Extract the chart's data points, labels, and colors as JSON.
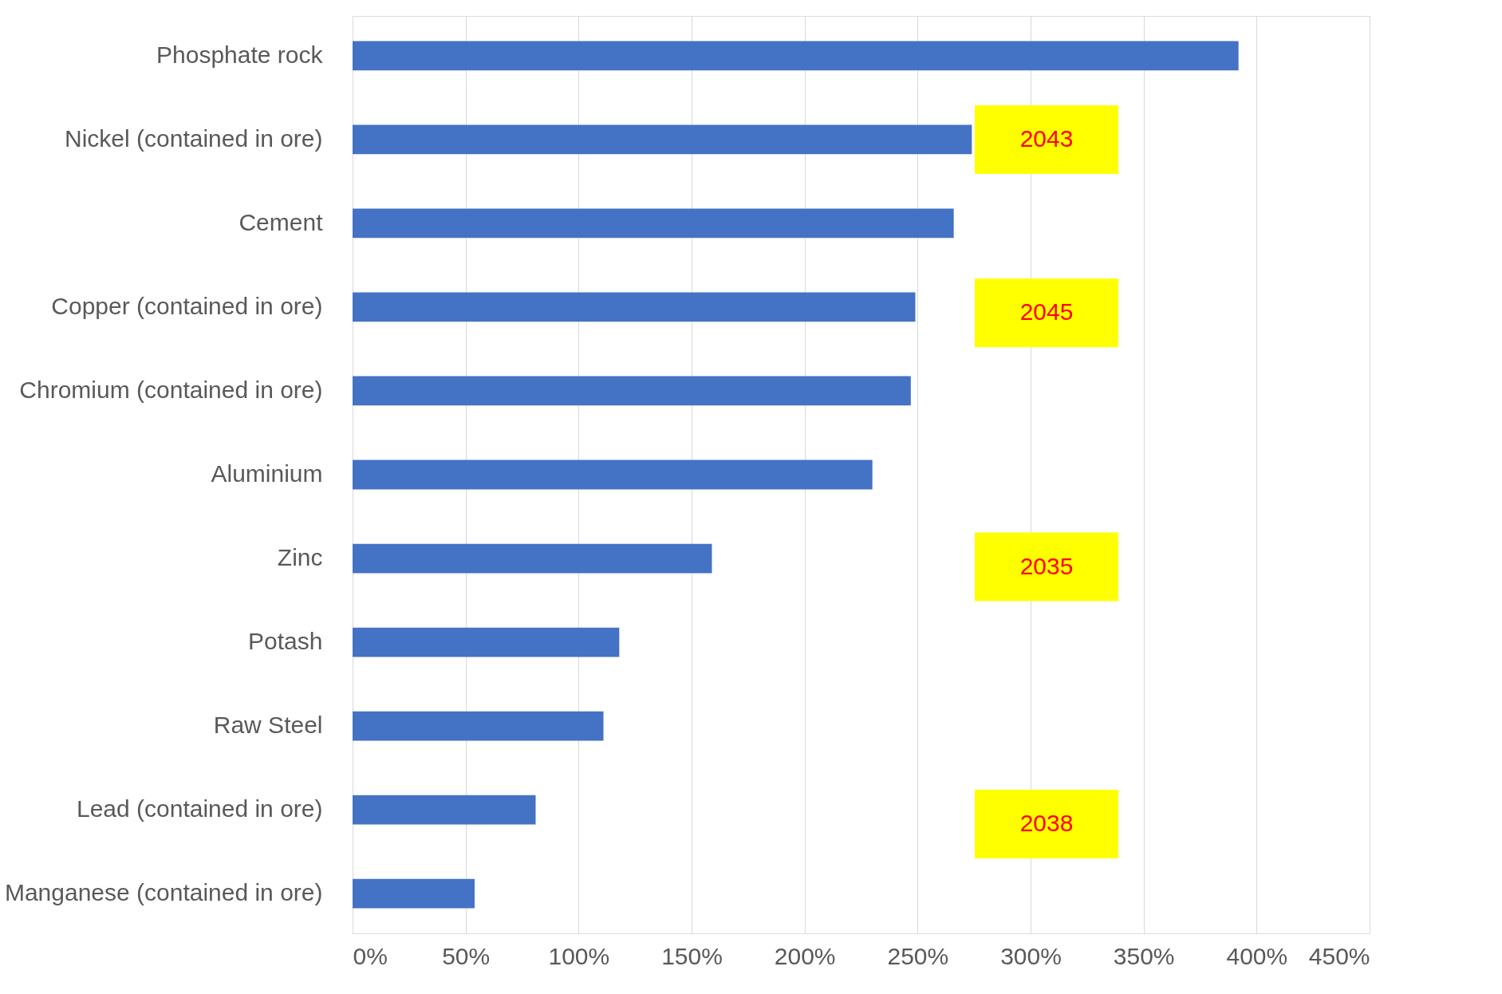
{
  "chart_data": {
    "type": "bar",
    "orientation": "horizontal",
    "categories": [
      "Phosphate rock",
      "Nickel (contained in ore)",
      "Cement",
      "Copper (contained in ore)",
      "Chromium (contained in ore)",
      "Aluminium",
      "Zinc",
      "Potash",
      "Raw Steel",
      "Lead (contained in ore)",
      "Manganese (contained in ore)"
    ],
    "values": [
      392,
      274,
      266,
      249,
      247,
      230,
      159,
      118,
      111,
      81,
      54
    ],
    "color": "#4472c4",
    "xlim": [
      0,
      450
    ],
    "xticks": [
      {
        "value": 0,
        "label": "0%"
      },
      {
        "value": 50,
        "label": "50%"
      },
      {
        "value": 100,
        "label": "100%"
      },
      {
        "value": 150,
        "label": "150%"
      },
      {
        "value": 200,
        "label": "200%"
      },
      {
        "value": 250,
        "label": "250%"
      },
      {
        "value": 300,
        "label": "300%"
      },
      {
        "value": 350,
        "label": "350%"
      },
      {
        "value": 400,
        "label": "400%"
      },
      {
        "value": 450,
        "label": "450%"
      }
    ],
    "grid": "x",
    "annotations": [
      "2043",
      "2045",
      "2035",
      "2038"
    ]
  }
}
